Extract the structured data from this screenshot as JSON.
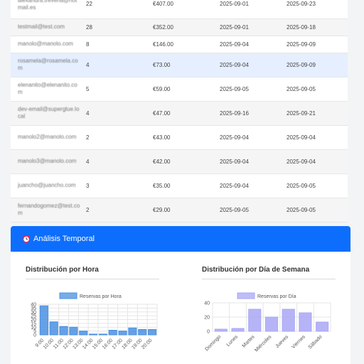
{
  "table": {
    "rows": [
      {
        "email": "alexandra.trevena@hotmail.es",
        "count": "22",
        "price": "€407.00",
        "date1": "2025-09-01",
        "date2": "2025-09-23"
      },
      {
        "email": "testmail@test.com",
        "count": "28",
        "price": "€352.00",
        "date1": "2025-09-01",
        "date2": "2025-09-18"
      },
      {
        "email": "manolo@manolo.com",
        "count": "8",
        "price": "€146.00",
        "date1": "2025-09-04",
        "date2": "2025-09-09"
      },
      {
        "email": "rosamela@rosamela.com",
        "count": "4",
        "price": "€73.00",
        "date1": "2025-09-04",
        "date2": "2025-09-09"
      },
      {
        "email": "elenanito@elenanito.com",
        "count": "5",
        "price": "€59.00",
        "date1": "2025-09-05",
        "date2": "2025-09-05"
      },
      {
        "email": "dev-email@superglue.local",
        "count": "4",
        "price": "€47.00",
        "date1": "2025-09-16",
        "date2": "2025-09-21"
      },
      {
        "email": "manolo2@manolo.com",
        "count": "2",
        "price": "€43.00",
        "date1": "2025-09-04",
        "date2": "2025-09-04"
      },
      {
        "email": "manolo3@manolo.com",
        "count": "4",
        "price": "€42.00",
        "date1": "2025-09-04",
        "date2": "2025-09-04"
      },
      {
        "email": "juancho@juancho.com",
        "count": "3",
        "price": "€35.00",
        "date1": "2025-09-04",
        "date2": "2025-09-05"
      },
      {
        "email": "fernandogomez@test.com",
        "count": "2",
        "price": "€29.00",
        "date1": "2025-09-05",
        "date2": "2025-09-05"
      }
    ],
    "selected_index": 3
  },
  "section": {
    "title": "Análisis Temporal",
    "icon": "alarm-clock-icon",
    "color": "#0d6efd"
  },
  "charts": {
    "hour_title": "Distribución por Hora",
    "day_title": "Distribución por Día de Semana"
  },
  "chart_data": [
    {
      "type": "bar",
      "title": "Distribución por Hora",
      "categories": [
        "9:00",
        "10:00",
        "11:00",
        "12:00",
        "13:00",
        "14:00",
        "15:00",
        "16:00",
        "17:00",
        "18:00",
        "19:00",
        "20:00"
      ],
      "series": [
        {
          "name": "Reservas por Hora",
          "values": [
            38,
            17,
            11,
            10,
            5,
            1,
            1,
            6,
            5,
            9,
            7,
            7
          ]
        }
      ],
      "ylim": [
        0,
        40
      ],
      "yticks": [
        0,
        5,
        10,
        15,
        20,
        25,
        30,
        35,
        40
      ],
      "color": "#4a90e2",
      "legend": "top"
    },
    {
      "type": "bar",
      "title": "Distribución por Día de Semana",
      "categories": [
        "Domingo",
        "Lunes",
        "Martes",
        "Miércoles",
        "Jueves",
        "Viernes",
        "Sábado"
      ],
      "series": [
        {
          "name": "Reservas por Día",
          "values": [
            3,
            4,
            31,
            20,
            31,
            26,
            13
          ]
        }
      ],
      "ylim": [
        0,
        40
      ],
      "yticks": [
        0,
        20,
        40
      ],
      "color": "#a9a7f5",
      "legend": "top"
    }
  ]
}
